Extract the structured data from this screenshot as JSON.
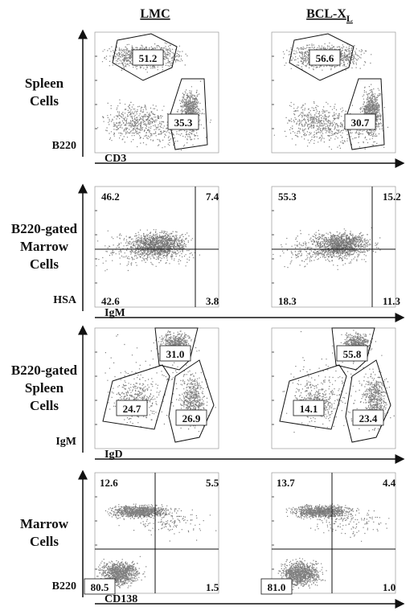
{
  "columns": [
    {
      "main": "LMC"
    },
    {
      "main": "BCL-X",
      "sub": "L"
    }
  ],
  "rows": [
    {
      "label": [
        "Spleen",
        "Cells"
      ],
      "y_axis": "B220",
      "x_axis": "CD3",
      "panels": [
        [
          "51.2",
          "35.3"
        ],
        [
          "56.6",
          "30.7"
        ]
      ]
    },
    {
      "label": [
        "B220-gated",
        "Marrow",
        "Cells"
      ],
      "y_axis": "HSA",
      "x_axis": "IgM",
      "panels": [
        [
          "46.2",
          "7.4",
          "42.6",
          "3.8"
        ],
        [
          "55.3",
          "15.2",
          "18.3",
          "11.3"
        ]
      ]
    },
    {
      "label": [
        "B220-gated",
        "Spleen",
        "Cells"
      ],
      "y_axis": "IgM",
      "x_axis": "IgD",
      "panels": [
        [
          "31.0",
          "24.7",
          "26.9"
        ],
        [
          "55.8",
          "14.1",
          "23.4"
        ]
      ]
    },
    {
      "label": [
        "Marrow",
        "Cells"
      ],
      "y_axis": "B220",
      "x_axis": "CD138",
      "panels": [
        [
          "12.6",
          "5.5",
          "80.5",
          "1.5"
        ],
        [
          "13.7",
          "4.4",
          "81.0",
          "1.0"
        ]
      ]
    }
  ]
}
